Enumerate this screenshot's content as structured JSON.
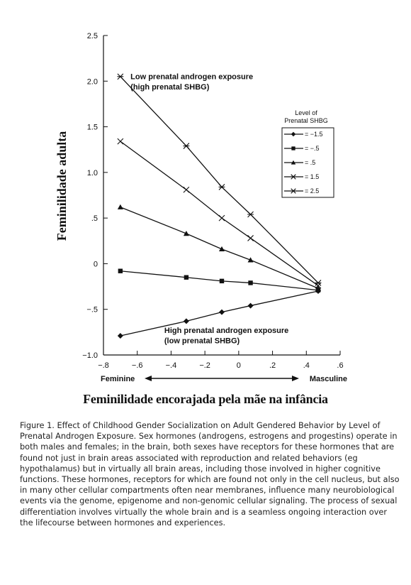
{
  "chart_data": {
    "type": "line",
    "ylabel": "Feminilidade adulta",
    "xlabel": "Feminilidade encorajada pela mãe na infância",
    "x_end_labels": {
      "left": "Feminine",
      "right": "Masculine"
    },
    "xlim": [
      -0.8,
      0.6
    ],
    "ylim": [
      -1.0,
      2.5
    ],
    "xticks": [
      -0.8,
      -0.6,
      -0.4,
      -0.2,
      0,
      0.2,
      0.4,
      0.6
    ],
    "xtick_labels": [
      "−.8",
      "−.6",
      "−.4",
      "−.2",
      "0",
      ".2",
      ".4",
      ".6"
    ],
    "yticks": [
      -1.0,
      -0.5,
      0,
      0.5,
      1.0,
      1.5,
      2.0,
      2.5
    ],
    "ytick_labels": [
      "−1.0",
      "−.5",
      "0",
      ".5",
      "1.0",
      "1.5",
      "2.0",
      "2.5"
    ],
    "legend_title": "Level of\nPrenatal SHBG",
    "legend_placement": "right",
    "annotations": [
      {
        "text": "Low prenatal androgen exposure",
        "x": -0.64,
        "y": 2.02
      },
      {
        "text": "(high prenatal SHBG)",
        "x": -0.64,
        "y": 1.91
      },
      {
        "text": "High prenatal androgen exposure",
        "x": -0.44,
        "y": -0.76
      },
      {
        "text": "(low prenatal SHBG)",
        "x": -0.44,
        "y": -0.87
      }
    ],
    "x": [
      -0.7,
      -0.31,
      -0.1,
      0.07,
      0.47
    ],
    "series": [
      {
        "name": "= −1.5",
        "marker": "diamond",
        "values": [
          -0.79,
          -0.63,
          -0.53,
          -0.46,
          -0.3
        ]
      },
      {
        "name": "= −.5",
        "marker": "square",
        "values": [
          -0.08,
          -0.15,
          -0.19,
          -0.21,
          -0.29
        ]
      },
      {
        "name": "= .5",
        "marker": "triangle",
        "values": [
          0.62,
          0.33,
          0.16,
          0.04,
          -0.27
        ]
      },
      {
        "name": "= 1.5",
        "marker": "x",
        "values": [
          1.34,
          0.81,
          0.5,
          0.28,
          -0.24
        ]
      },
      {
        "name": "= 2.5",
        "marker": "asterisk",
        "values": [
          2.05,
          1.29,
          0.84,
          0.54,
          -0.21
        ]
      }
    ]
  },
  "caption": "Figure 1. Effect of Childhood Gender Socialization on Adult Gendered Behavior by Level of Prenatal Androgen Exposure. Sex hormones (androgens, estrogens and progestins) operate in both males and females; in the brain, both sexes have receptors for these hormones that are found not just in brain areas associated with reproduction and related behaviors (eg hypothalamus) but in virtually all brain areas, including those involved in higher cognitive functions.  These hormones, receptors for which are found not only in the cell nucleus, but also in many other cellular compartments often near membranes, influence many neurobiological events via the genome, epigenome and non-genomic cellular signaling. The process of sexual differentiation involves virtually the whole brain and is a seamless ongoing interaction over the lifecourse between hormones and experiences."
}
